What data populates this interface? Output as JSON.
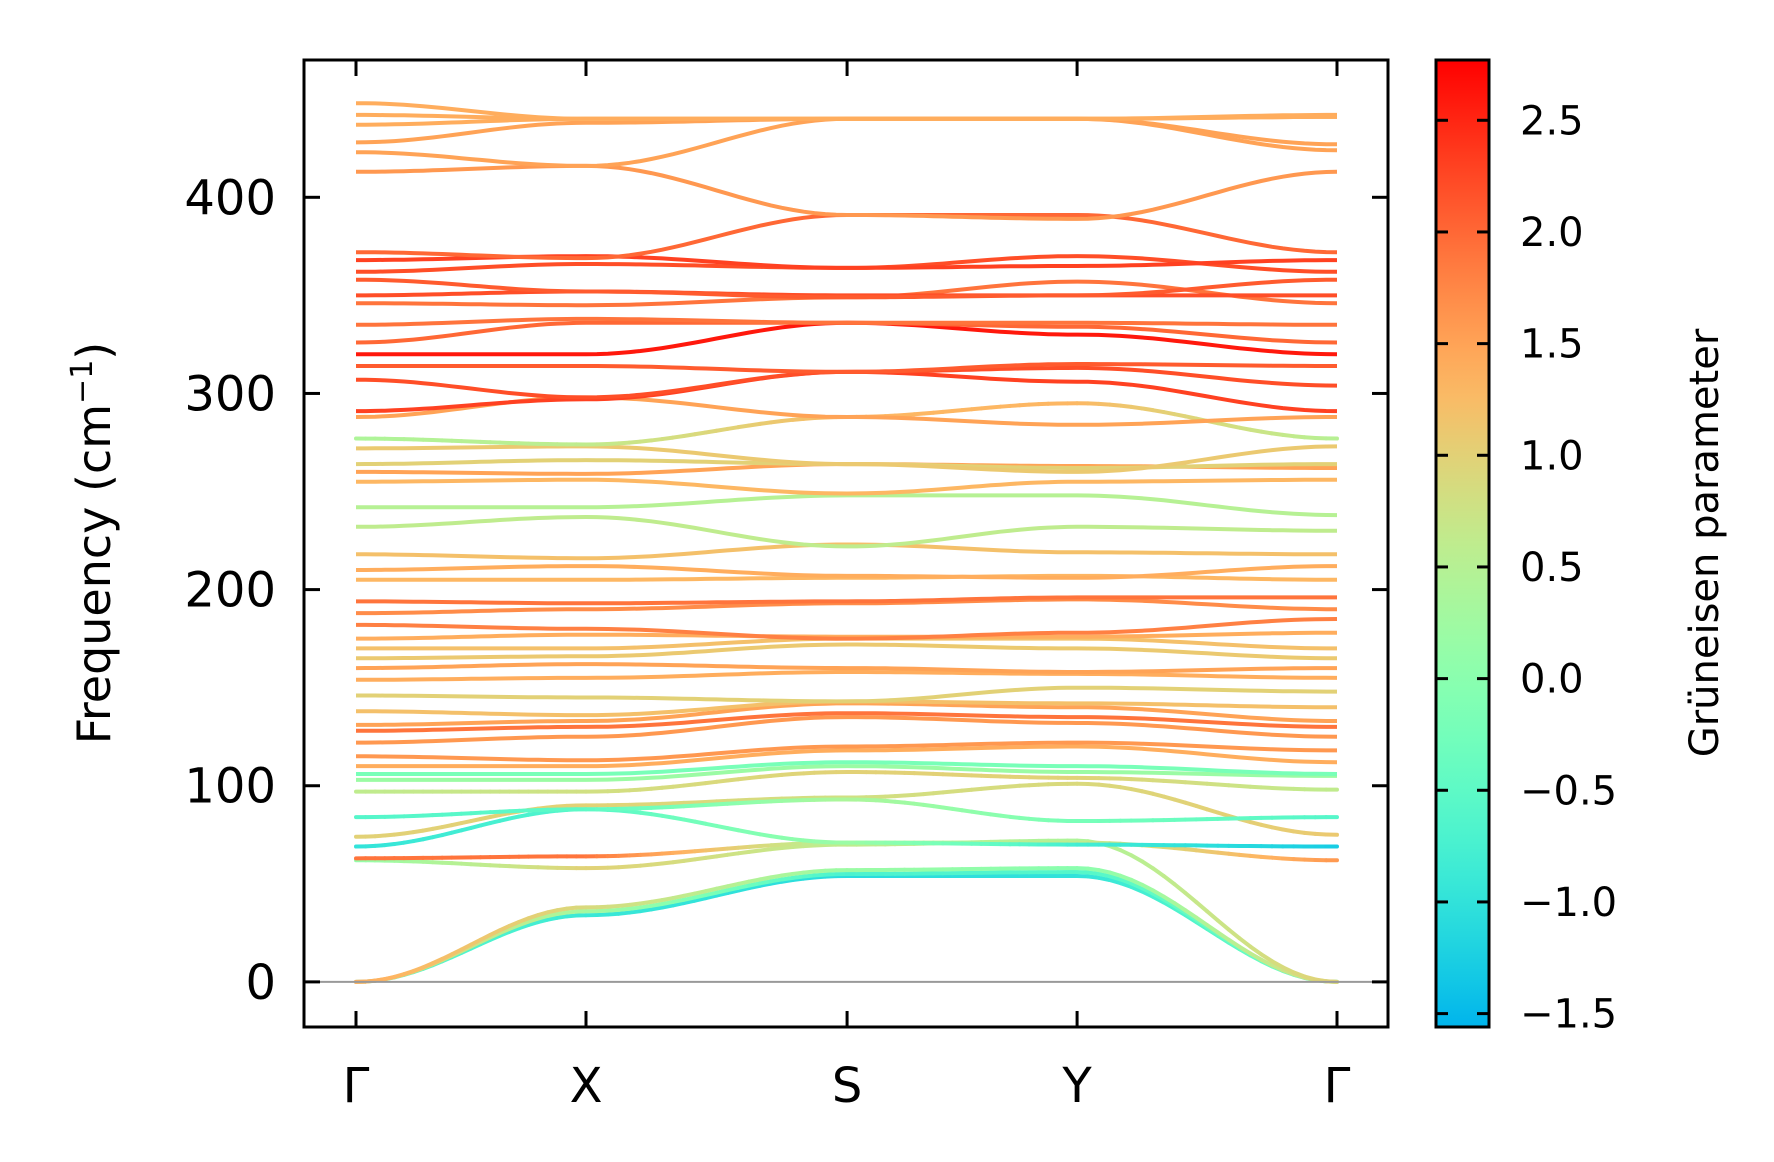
{
  "chart_data": {
    "type": "line",
    "title": "",
    "xlabel": "",
    "ylabel": "Frequency (cm⁻¹)",
    "ylabel_parts": {
      "main": "Frequency (cm",
      "sup": "−1",
      "close": ")"
    },
    "ylim": [
      -23,
      470
    ],
    "yticks": [
      0,
      100,
      200,
      300,
      400
    ],
    "ytick_labels": [
      "0",
      "100",
      "200",
      "300",
      "400"
    ],
    "k_points": [
      "Γ",
      "X",
      "S",
      "Y",
      "Γ"
    ],
    "k_positions": [
      0,
      1,
      2.135,
      3.135,
      4.265
    ],
    "zero_line": true,
    "colorbar": {
      "label": "Grüneisen parameter",
      "range": [
        -1.56,
        2.77
      ],
      "ticks": [
        -1.5,
        -1.0,
        -0.5,
        0.0,
        0.5,
        1.0,
        1.5,
        2.0,
        2.5
      ],
      "tick_labels": [
        "−1.5",
        "−1.0",
        "−0.5",
        "0.0",
        "0.5",
        "1.0",
        "1.5",
        "2.0",
        "2.5"
      ],
      "colormap": "rainbow"
    },
    "bands": [
      {
        "freq": [
          0,
          34,
          54,
          54,
          0
        ],
        "gamma": [
          -0.4,
          -0.9,
          -1.1,
          -1.0,
          -0.2
        ]
      },
      {
        "freq": [
          0,
          36,
          55,
          56,
          0
        ],
        "gamma": [
          1.2,
          0.3,
          -0.7,
          -0.6,
          -0.2
        ]
      },
      {
        "freq": [
          0,
          38,
          57,
          58,
          0
        ],
        "gamma": [
          1.4,
          0.9,
          0.2,
          0.0,
          0.9
        ]
      },
      {
        "freq": [
          62,
          58,
          70,
          72,
          0
        ],
        "gamma": [
          0.1,
          1.0,
          0.6,
          0.4,
          1.0
        ]
      },
      {
        "freq": [
          63,
          64,
          71,
          71,
          62
        ],
        "gamma": [
          1.9,
          1.9,
          0.4,
          0.6,
          1.6
        ]
      },
      {
        "freq": [
          69,
          88,
          71,
          70,
          69
        ],
        "gamma": [
          -1.0,
          -0.6,
          0.2,
          -0.8,
          -1.3
        ]
      },
      {
        "freq": [
          74,
          90,
          94,
          101,
          75
        ],
        "gamma": [
          1.0,
          1.0,
          0.8,
          0.9,
          1.1
        ]
      },
      {
        "freq": [
          84,
          88,
          93,
          82,
          84
        ],
        "gamma": [
          -0.6,
          -0.5,
          0.4,
          -0.2,
          -0.6
        ]
      },
      {
        "freq": [
          97,
          97,
          107,
          104,
          98
        ],
        "gamma": [
          0.6,
          0.8,
          1.0,
          1.0,
          0.6
        ]
      },
      {
        "freq": [
          103,
          103,
          110,
          107,
          105
        ],
        "gamma": 0.2
      },
      {
        "freq": [
          106,
          106,
          112,
          110,
          106
        ],
        "gamma": -0.2
      },
      {
        "freq": [
          110,
          110,
          118,
          120,
          112
        ],
        "gamma": 1.4
      },
      {
        "freq": [
          115,
          113,
          120,
          122,
          118
        ],
        "gamma": 1.6
      },
      {
        "freq": [
          122,
          125,
          135,
          132,
          125
        ],
        "gamma": 1.6
      },
      {
        "freq": [
          128,
          130,
          137,
          135,
          130
        ],
        "gamma": 1.9
      },
      {
        "freq": [
          131,
          133,
          142,
          140,
          133
        ],
        "gamma": 1.5
      },
      {
        "freq": [
          138,
          136,
          143,
          142,
          140
        ],
        "gamma": 1.2
      },
      {
        "freq": [
          146,
          145,
          143,
          150,
          148
        ],
        "gamma": 1.0
      },
      {
        "freq": [
          154,
          155,
          158,
          157,
          155
        ],
        "gamma": 1.4
      },
      {
        "freq": [
          160,
          162,
          160,
          158,
          160
        ],
        "gamma": 1.5
      },
      {
        "freq": [
          165,
          166,
          172,
          170,
          165
        ],
        "gamma": 1.1
      },
      {
        "freq": [
          170,
          170,
          175,
          175,
          170
        ],
        "gamma": 1.2
      },
      {
        "freq": [
          175,
          177,
          176,
          176,
          178
        ],
        "gamma": 1.4
      },
      {
        "freq": [
          182,
          180,
          175,
          178,
          185
        ],
        "gamma": 1.8
      },
      {
        "freq": [
          188,
          190,
          193,
          195,
          190
        ],
        "gamma": 1.7
      },
      {
        "freq": [
          194,
          193,
          194,
          196,
          196
        ],
        "gamma": 1.9
      },
      {
        "freq": [
          205,
          205,
          206,
          207,
          205
        ],
        "gamma": 1.3
      },
      {
        "freq": [
          210,
          212,
          207,
          206,
          212
        ],
        "gamma": 1.4
      },
      {
        "freq": [
          218,
          216,
          223,
          219,
          218
        ],
        "gamma": 1.2
      },
      {
        "freq": [
          232,
          237,
          222,
          232,
          230
        ],
        "gamma": 0.6
      },
      {
        "freq": [
          242,
          242,
          248,
          248,
          238
        ],
        "gamma": 0.5
      },
      {
        "freq": [
          255,
          256,
          249,
          255,
          256
        ],
        "gamma": 1.3
      },
      {
        "freq": [
          260,
          259,
          264,
          263,
          262
        ],
        "gamma": 1.5
      },
      {
        "freq": [
          264,
          266,
          264,
          262,
          264
        ],
        "gamma": 1.0
      },
      {
        "freq": [
          272,
          273,
          264,
          260,
          273
        ],
        "gamma": 1.1
      },
      {
        "freq": [
          277,
          274,
          288,
          295,
          277
        ],
        "gamma": [
          0.4,
          0.6,
          1.3,
          1.3,
          0.5
        ]
      },
      {
        "freq": [
          288,
          298,
          288,
          284,
          288
        ],
        "gamma": 1.5
      },
      {
        "freq": [
          291,
          297,
          311,
          306,
          291
        ],
        "gamma": 2.3
      },
      {
        "freq": [
          307,
          298,
          311,
          313,
          304
        ],
        "gamma": 2.2
      },
      {
        "freq": [
          314,
          314,
          311,
          315,
          314
        ],
        "gamma": 2.1
      },
      {
        "freq": [
          320,
          320,
          336,
          330,
          320
        ],
        "gamma": 2.6
      },
      {
        "freq": [
          326,
          336,
          336,
          334,
          326
        ],
        "gamma": 2.0
      },
      {
        "freq": [
          335,
          338,
          336,
          336,
          335
        ],
        "gamma": 1.9
      },
      {
        "freq": [
          346,
          345,
          349,
          357,
          346
        ],
        "gamma": 1.9
      },
      {
        "freq": [
          350,
          352,
          350,
          350,
          350
        ],
        "gamma": 2.2
      },
      {
        "freq": [
          358,
          352,
          349,
          350,
          358
        ],
        "gamma": 2.1
      },
      {
        "freq": [
          362,
          366,
          364,
          370,
          362
        ],
        "gamma": 2.2
      },
      {
        "freq": [
          368,
          370,
          364,
          365,
          368
        ],
        "gamma": 2.3
      },
      {
        "freq": [
          372,
          369,
          391,
          391,
          372
        ],
        "gamma": 2.0
      },
      {
        "freq": [
          413,
          416,
          391,
          389,
          413
        ],
        "gamma": 1.6
      },
      {
        "freq": [
          423,
          416,
          440,
          440,
          424
        ],
        "gamma": 1.5
      },
      {
        "freq": [
          428,
          438,
          440,
          440,
          427
        ],
        "gamma": 1.5
      },
      {
        "freq": [
          437,
          440,
          440,
          440,
          441
        ],
        "gamma": 1.4
      },
      {
        "freq": [
          442,
          440,
          440,
          440,
          442
        ],
        "gamma": 1.4
      },
      {
        "freq": [
          448,
          440,
          440,
          440,
          441
        ],
        "gamma": 1.4
      }
    ]
  }
}
